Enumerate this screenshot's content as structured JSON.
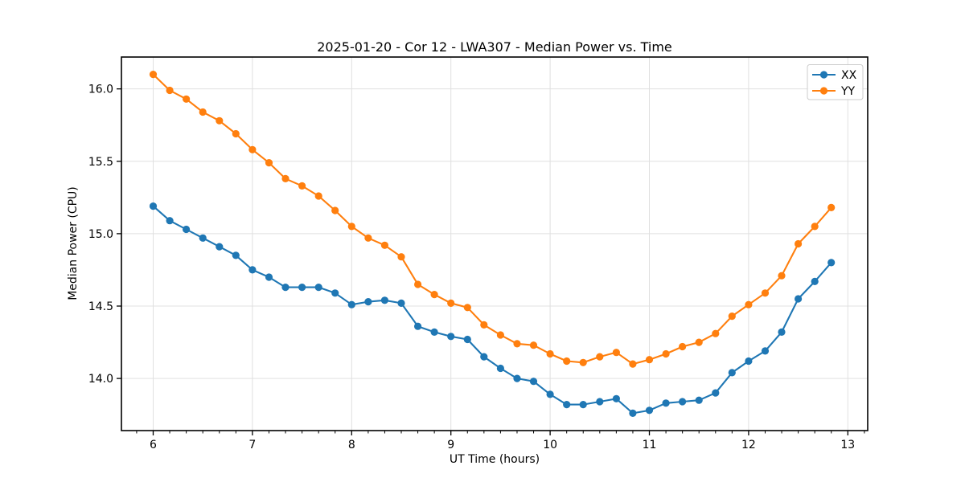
{
  "figure": {
    "background": "#ffffff",
    "frame_color": "#000000",
    "grid_color": "#e0e0e0"
  },
  "chart_data": {
    "type": "line",
    "title": "2025-01-20 - Cor 12 - LWA307 - Median Power vs. Time",
    "xlabel": "UT Time (hours)",
    "ylabel": "Median Power (CPU)",
    "xlim": [
      5.68,
      13.2
    ],
    "ylim": [
      13.64,
      16.22
    ],
    "x_ticks": [
      6,
      7,
      8,
      9,
      10,
      11,
      12,
      13
    ],
    "x_tick_labels": [
      "6",
      "7",
      "8",
      "9",
      "10",
      "11",
      "12",
      "13"
    ],
    "x_minor_tick_step": 0.166667,
    "y_ticks": [
      14.0,
      14.5,
      15.0,
      15.5,
      16.0
    ],
    "y_tick_labels": [
      "14.0",
      "14.5",
      "15.0",
      "15.5",
      "16.0"
    ],
    "grid": true,
    "legend": {
      "position": "upper right",
      "entries": [
        "XX",
        "YY"
      ]
    },
    "x": [
      6.0,
      6.167,
      6.333,
      6.5,
      6.667,
      6.833,
      7.0,
      7.167,
      7.333,
      7.5,
      7.667,
      7.833,
      8.0,
      8.167,
      8.333,
      8.5,
      8.667,
      8.833,
      9.0,
      9.167,
      9.333,
      9.5,
      9.667,
      9.833,
      10.0,
      10.167,
      10.333,
      10.5,
      10.667,
      10.833,
      11.0,
      11.167,
      11.333,
      11.5,
      11.667,
      11.833,
      12.0,
      12.167,
      12.333,
      12.5,
      12.667,
      12.833
    ],
    "series": [
      {
        "name": "XX",
        "color": "#1f77b4",
        "marker": "circle",
        "values": [
          15.19,
          15.09,
          15.03,
          14.97,
          14.91,
          14.85,
          14.75,
          14.7,
          14.63,
          14.63,
          14.63,
          14.59,
          14.51,
          14.53,
          14.54,
          14.52,
          14.36,
          14.32,
          14.29,
          14.27,
          14.15,
          14.07,
          14.0,
          13.98,
          13.89,
          13.82,
          13.82,
          13.84,
          13.86,
          13.76,
          13.78,
          13.83,
          13.84,
          13.85,
          13.9,
          14.04,
          14.12,
          14.19,
          14.32,
          14.55,
          14.67,
          14.8
        ]
      },
      {
        "name": "YY",
        "color": "#ff7f0e",
        "marker": "circle",
        "values": [
          16.1,
          15.99,
          15.93,
          15.84,
          15.78,
          15.69,
          15.58,
          15.49,
          15.38,
          15.33,
          15.26,
          15.16,
          15.05,
          14.97,
          14.92,
          14.84,
          14.65,
          14.58,
          14.52,
          14.49,
          14.37,
          14.3,
          14.24,
          14.23,
          14.17,
          14.12,
          14.11,
          14.15,
          14.18,
          14.1,
          14.13,
          14.17,
          14.22,
          14.25,
          14.31,
          14.43,
          14.51,
          14.59,
          14.71,
          14.93,
          15.05,
          15.18
        ]
      }
    ]
  }
}
